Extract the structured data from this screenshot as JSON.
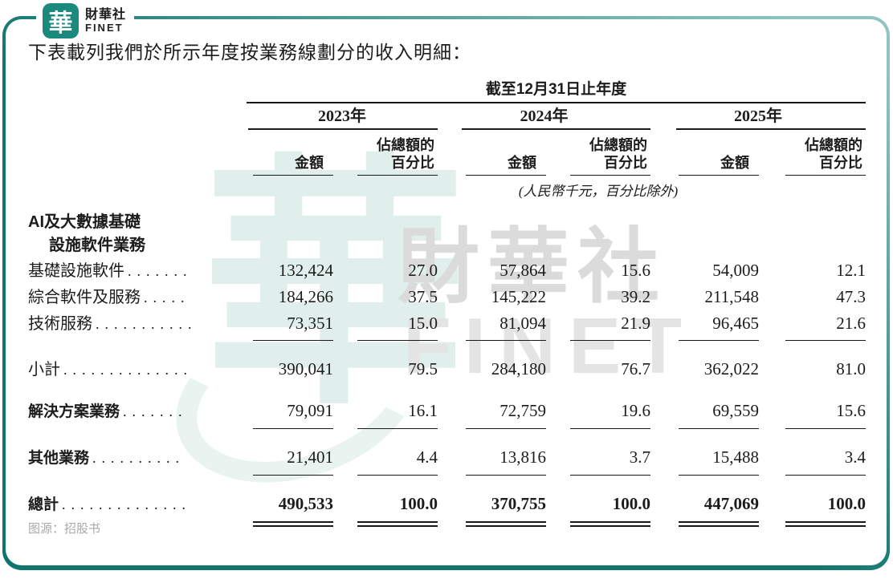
{
  "brand": {
    "logo_glyph": "華",
    "name_zh": "財華社",
    "name_en": "FINET"
  },
  "intro": "下表載列我們於所示年度按業務線劃分的收入明細：",
  "watermark": {
    "glyph": "華",
    "zh": "財華社",
    "en": "FINET"
  },
  "source_note": "图源：招股书",
  "table": {
    "period_header": "截至12月31日止年度",
    "years": [
      "2023年",
      "2024年",
      "2025年"
    ],
    "col_headers": {
      "amount": "金額",
      "pct_top": "佔總額的",
      "pct_bottom": "百分比"
    },
    "unit_note": "(人民幣千元，百分比除外)",
    "section_header": {
      "line1": "AI及大數據基礎",
      "line2": "設施軟件業務"
    },
    "rows": [
      {
        "label": "基礎設施軟件",
        "dots": ".......",
        "style": "normal",
        "gap": false,
        "values": [
          "132,424",
          "27.0",
          "57,864",
          "15.6",
          "54,009",
          "12.1"
        ],
        "rule_after": "none"
      },
      {
        "label": "綜合軟件及服務",
        "dots": ".....",
        "style": "normal",
        "gap": false,
        "values": [
          "184,266",
          "37.5",
          "145,222",
          "39.2",
          "211,548",
          "47.3"
        ],
        "rule_after": "none"
      },
      {
        "label": "技術服務",
        "dots": "...........",
        "style": "normal",
        "gap": false,
        "values": [
          "73,351",
          "15.0",
          "81,094",
          "21.9",
          "96,465",
          "21.6"
        ],
        "rule_after": "single"
      },
      {
        "label": "小計",
        "dots": "..............",
        "style": "normal",
        "gap": true,
        "values": [
          "390,041",
          "79.5",
          "284,180",
          "76.7",
          "362,022",
          "81.0"
        ],
        "rule_after": "none"
      },
      {
        "label": "解決方案業務",
        "dots": ".......",
        "style": "bold-label",
        "gap": true,
        "values": [
          "79,091",
          "16.1",
          "72,759",
          "19.6",
          "69,559",
          "15.6"
        ],
        "rule_after": "single"
      },
      {
        "label": "其他業務",
        "dots": "..........",
        "style": "bold-label",
        "gap": true,
        "values": [
          "21,401",
          "4.4",
          "13,816",
          "3.7",
          "15,488",
          "3.4"
        ],
        "rule_after": "single"
      },
      {
        "label": "總計",
        "dots": "..............",
        "style": "bold-all",
        "gap": true,
        "values": [
          "490,533",
          "100.0",
          "370,755",
          "100.0",
          "447,069",
          "100.0"
        ],
        "rule_after": "double"
      }
    ]
  },
  "colors": {
    "teal_dark": "#0e756e",
    "teal_light": "#8fc4bf",
    "logo_teal": "#1b8a7d",
    "text": "#1c1c1c",
    "rule": "#1a1a1a",
    "watermark_teal": "#e0efec",
    "watermark_gray": "#dbdbdb",
    "source_gray": "#a9a9a9"
  }
}
